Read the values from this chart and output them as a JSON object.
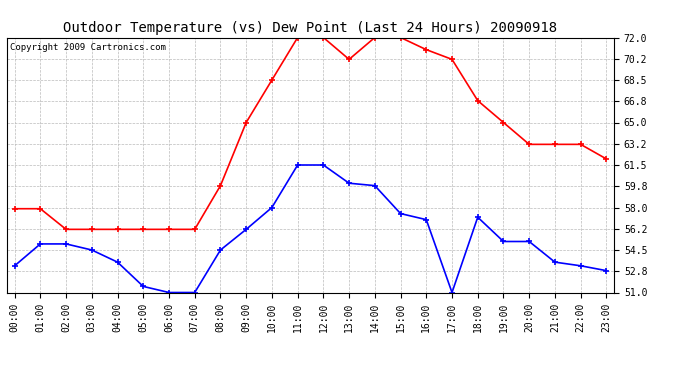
{
  "title": "Outdoor Temperature (vs) Dew Point (Last 24 Hours) 20090918",
  "copyright_text": "Copyright 2009 Cartronics.com",
  "hours": [
    "00:00",
    "01:00",
    "02:00",
    "03:00",
    "04:00",
    "05:00",
    "06:00",
    "07:00",
    "08:00",
    "09:00",
    "10:00",
    "11:00",
    "12:00",
    "13:00",
    "14:00",
    "15:00",
    "16:00",
    "17:00",
    "18:00",
    "19:00",
    "20:00",
    "21:00",
    "22:00",
    "23:00"
  ],
  "temp": [
    57.9,
    57.9,
    56.2,
    56.2,
    56.2,
    56.2,
    56.2,
    56.2,
    59.8,
    65.0,
    68.5,
    72.0,
    72.0,
    70.2,
    72.0,
    72.0,
    71.0,
    70.2,
    66.8,
    65.0,
    63.2,
    63.2,
    63.2,
    62.0
  ],
  "dew": [
    53.2,
    55.0,
    55.0,
    54.5,
    53.5,
    51.5,
    51.0,
    51.0,
    54.5,
    56.2,
    58.0,
    61.5,
    61.5,
    60.0,
    59.8,
    57.5,
    57.0,
    51.0,
    57.2,
    55.2,
    55.2,
    53.5,
    53.2,
    52.8
  ],
  "ylim_min": 51.0,
  "ylim_max": 72.0,
  "yticks": [
    51.0,
    52.8,
    54.5,
    56.2,
    58.0,
    59.8,
    61.5,
    63.2,
    65.0,
    66.8,
    68.5,
    70.2,
    72.0
  ],
  "temp_color": "#ff0000",
  "dew_color": "#0000ff",
  "bg_color": "#ffffff",
  "plot_bg_color": "#ffffff",
  "grid_color": "#bbbbbb",
  "title_fontsize": 10,
  "copyright_fontsize": 6.5,
  "tick_fontsize": 7,
  "line_width": 1.2,
  "marker_size": 4
}
